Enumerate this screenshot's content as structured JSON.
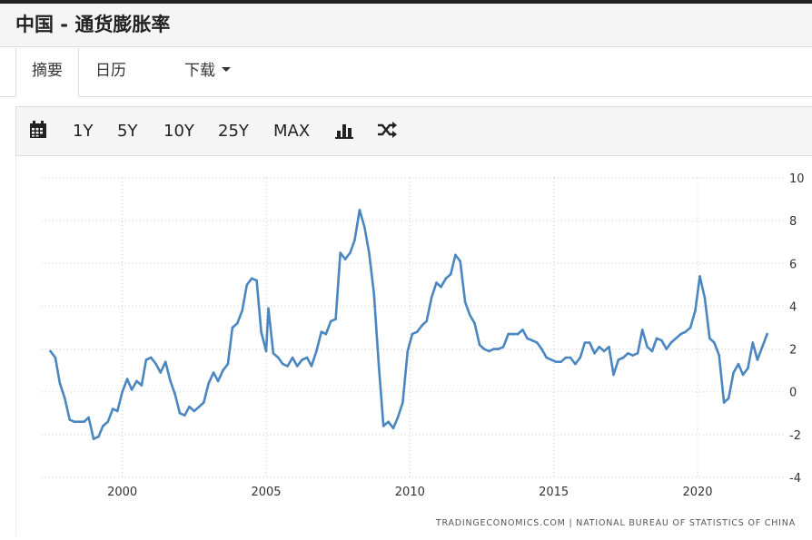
{
  "header": {
    "title": "中国 - 通货膨胀率"
  },
  "tabs": [
    {
      "label": "摘要"
    },
    {
      "label": "日历"
    },
    {
      "label": "下载"
    }
  ],
  "toolbar": {
    "ranges": [
      "1Y",
      "5Y",
      "10Y",
      "25Y",
      "MAX"
    ],
    "icons": [
      "calendar-icon",
      "bar-chart-icon",
      "shuffle-icon"
    ]
  },
  "chart_data": {
    "type": "line",
    "title": "",
    "xlabel": "",
    "ylabel": "",
    "x_ticks": [
      "2000",
      "2005",
      "2010",
      "2015",
      "2020"
    ],
    "y_ticks": [
      "10",
      "8",
      "6",
      "4",
      "2",
      "0",
      "-2",
      "-4"
    ],
    "xlim": [
      1997.2,
      2023.0
    ],
    "ylim": [
      -4,
      10
    ],
    "grid": true,
    "line_color": "#4a86c0",
    "series": [
      {
        "name": "",
        "x": [
          1997.5,
          1997.67,
          1997.83,
          1998.0,
          1998.17,
          1998.33,
          1998.5,
          1998.67,
          1998.83,
          1999.0,
          1999.17,
          1999.33,
          1999.5,
          1999.67,
          1999.83,
          2000.0,
          2000.17,
          2000.33,
          2000.5,
          2000.67,
          2000.83,
          2001.0,
          2001.17,
          2001.33,
          2001.5,
          2001.67,
          2001.83,
          2002.0,
          2002.17,
          2002.33,
          2002.5,
          2002.67,
          2002.83,
          2003.0,
          2003.17,
          2003.33,
          2003.5,
          2003.67,
          2003.83,
          2004.0,
          2004.17,
          2004.33,
          2004.5,
          2004.67,
          2004.83,
          2005.0,
          2005.08,
          2005.25,
          2005.42,
          2005.58,
          2005.75,
          2005.92,
          2006.08,
          2006.25,
          2006.42,
          2006.58,
          2006.75,
          2006.92,
          2007.08,
          2007.25,
          2007.42,
          2007.58,
          2007.75,
          2007.92,
          2008.08,
          2008.25,
          2008.42,
          2008.58,
          2008.75,
          2008.92,
          2009.08,
          2009.25,
          2009.42,
          2009.58,
          2009.75,
          2009.92,
          2010.08,
          2010.25,
          2010.42,
          2010.58,
          2010.75,
          2010.92,
          2011.08,
          2011.25,
          2011.42,
          2011.58,
          2011.75,
          2011.92,
          2012.08,
          2012.25,
          2012.42,
          2012.58,
          2012.75,
          2012.92,
          2013.08,
          2013.25,
          2013.42,
          2013.58,
          2013.75,
          2013.92,
          2014.08,
          2014.25,
          2014.42,
          2014.58,
          2014.75,
          2014.92,
          2015.08,
          2015.25,
          2015.42,
          2015.58,
          2015.75,
          2015.92,
          2016.08,
          2016.25,
          2016.42,
          2016.58,
          2016.75,
          2016.92,
          2017.08,
          2017.25,
          2017.42,
          2017.58,
          2017.75,
          2017.92,
          2018.08,
          2018.25,
          2018.42,
          2018.58,
          2018.75,
          2018.92,
          2019.08,
          2019.25,
          2019.42,
          2019.58,
          2019.75,
          2019.92,
          2020.08,
          2020.25,
          2020.42,
          2020.58,
          2020.75,
          2020.92,
          2021.08,
          2021.25,
          2021.42,
          2021.58,
          2021.75,
          2021.92,
          2022.08,
          2022.25,
          2022.42
        ],
        "y": [
          1.9,
          1.6,
          0.4,
          -0.3,
          -1.3,
          -1.4,
          -1.4,
          -1.4,
          -1.2,
          -2.2,
          -2.1,
          -1.6,
          -1.4,
          -0.8,
          -0.9,
          0.0,
          0.6,
          0.1,
          0.5,
          0.3,
          1.5,
          1.6,
          1.3,
          0.9,
          1.4,
          0.5,
          -0.1,
          -1.0,
          -1.1,
          -0.7,
          -0.9,
          -0.7,
          -0.5,
          0.4,
          0.9,
          0.5,
          1.0,
          1.3,
          3.0,
          3.2,
          3.8,
          5.0,
          5.3,
          5.2,
          2.8,
          1.9,
          3.9,
          1.8,
          1.6,
          1.3,
          1.2,
          1.6,
          1.2,
          1.5,
          1.6,
          1.2,
          1.9,
          2.8,
          2.7,
          3.3,
          3.4,
          6.5,
          6.2,
          6.5,
          7.1,
          8.5,
          7.7,
          6.5,
          4.6,
          1.2,
          -1.6,
          -1.4,
          -1.7,
          -1.2,
          -0.5,
          1.9,
          2.7,
          2.8,
          3.1,
          3.3,
          4.4,
          5.1,
          4.9,
          5.3,
          5.5,
          6.4,
          6.1,
          4.2,
          3.6,
          3.2,
          2.2,
          2.0,
          1.9,
          2.0,
          2.0,
          2.1,
          2.7,
          2.7,
          2.7,
          2.9,
          2.5,
          2.4,
          2.3,
          2.0,
          1.6,
          1.5,
          1.4,
          1.4,
          1.6,
          1.6,
          1.3,
          1.6,
          2.3,
          2.3,
          1.8,
          2.1,
          1.9,
          2.1,
          0.8,
          1.5,
          1.6,
          1.8,
          1.7,
          1.8,
          2.9,
          2.1,
          1.9,
          2.5,
          2.4,
          2.0,
          2.3,
          2.5,
          2.7,
          2.8,
          3.0,
          3.8,
          5.4,
          4.4,
          2.5,
          2.3,
          1.7,
          -0.5,
          -0.3,
          0.9,
          1.3,
          0.8,
          1.1,
          2.3,
          1.5,
          2.1,
          2.7
        ]
      }
    ]
  },
  "source": "TRADINGECONOMICS.COM | NATIONAL BUREAU OF STATISTICS OF CHINA"
}
